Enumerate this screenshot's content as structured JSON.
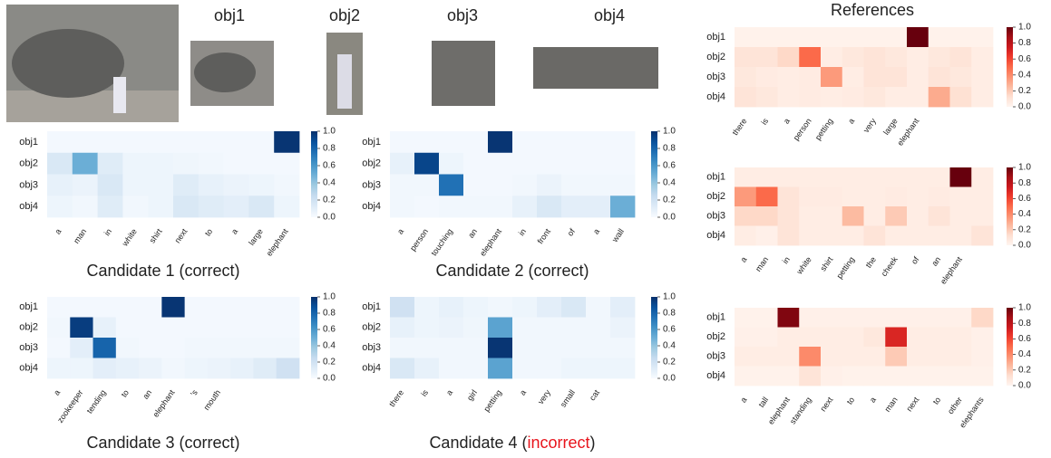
{
  "images": {
    "labels": [
      "obj1",
      "obj2",
      "obj3",
      "obj4"
    ]
  },
  "references_title": "References",
  "chart_data": [
    {
      "type": "heatmap",
      "colormap": "Blues",
      "vlim": [
        0,
        1
      ],
      "title_parts": [
        {
          "text": "Candidate 1 (correct)"
        }
      ],
      "categories": [
        "a",
        "man",
        "in",
        "white",
        "shirt",
        "next",
        "to",
        "a",
        "large",
        "elephant"
      ],
      "rows": [
        "obj1",
        "obj2",
        "obj3",
        "obj4"
      ],
      "values": [
        [
          0.02,
          0.02,
          0.02,
          0.02,
          0.02,
          0.02,
          0.02,
          0.02,
          0.02,
          0.98
        ],
        [
          0.15,
          0.5,
          0.12,
          0.05,
          0.05,
          0.04,
          0.03,
          0.02,
          0.02,
          0.02
        ],
        [
          0.08,
          0.06,
          0.15,
          0.05,
          0.05,
          0.12,
          0.08,
          0.06,
          0.05,
          0.03
        ],
        [
          0.05,
          0.03,
          0.12,
          0.03,
          0.05,
          0.15,
          0.12,
          0.1,
          0.15,
          0.05
        ]
      ],
      "cticks": [
        {
          "value": 0,
          "label": "0.0"
        },
        0.2,
        0.4,
        0.6,
        0.8,
        {
          "value": 1,
          "label": "1.0"
        }
      ]
    },
    {
      "type": "heatmap",
      "colormap": "Blues",
      "vlim": [
        0,
        1
      ],
      "title_parts": [
        {
          "text": "Candidate 2 (correct)"
        }
      ],
      "categories": [
        "a",
        "person",
        "touching",
        "an",
        "elephant",
        "in",
        "front",
        "of",
        "a",
        "wall"
      ],
      "rows": [
        "obj1",
        "obj2",
        "obj3",
        "obj4"
      ],
      "values": [
        [
          0.02,
          0.02,
          0.02,
          0.02,
          0.98,
          0.02,
          0.02,
          0.02,
          0.02,
          0.02
        ],
        [
          0.08,
          0.92,
          0.05,
          0.02,
          0.02,
          0.02,
          0.02,
          0.02,
          0.02,
          0.02
        ],
        [
          0.03,
          0.03,
          0.75,
          0.02,
          0.02,
          0.03,
          0.06,
          0.03,
          0.03,
          0.03
        ],
        [
          0.03,
          0.02,
          0.03,
          0.03,
          0.03,
          0.08,
          0.15,
          0.1,
          0.1,
          0.5
        ]
      ],
      "cticks": [
        {
          "value": 0,
          "label": "0.0"
        },
        0.2,
        0.4,
        0.6,
        0.8,
        {
          "value": 1,
          "label": "1.0"
        }
      ]
    },
    {
      "type": "heatmap",
      "colormap": "Blues",
      "vlim": [
        0,
        1
      ],
      "title_parts": [
        {
          "text": "Candidate 3 (correct)"
        }
      ],
      "categories": [
        "a",
        "zookeeper",
        "tending",
        "to",
        "an",
        "elephant",
        "'s",
        "mouth",
        null,
        null,
        null
      ],
      "rows": [
        "obj1",
        "obj2",
        "obj3",
        "obj4"
      ],
      "values": [
        [
          0.02,
          0.02,
          0.02,
          0.02,
          0.02,
          0.98,
          0.02,
          0.02,
          0.02,
          0.02,
          0.02
        ],
        [
          0.03,
          0.95,
          0.08,
          0.02,
          0.02,
          0.02,
          0.02,
          0.02,
          0.02,
          0.02,
          0.02
        ],
        [
          0.02,
          0.1,
          0.8,
          0.03,
          0.02,
          0.02,
          0.03,
          0.03,
          0.03,
          0.03,
          0.03
        ],
        [
          0.05,
          0.05,
          0.1,
          0.08,
          0.06,
          0.03,
          0.05,
          0.06,
          0.08,
          0.12,
          0.2
        ]
      ],
      "cticks": [
        {
          "value": 0,
          "label": "0.0"
        },
        0.2,
        0.4,
        0.6,
        0.8,
        {
          "value": 1,
          "label": "1.0"
        }
      ]
    },
    {
      "type": "heatmap",
      "colormap": "Blues",
      "vlim": [
        0,
        1
      ],
      "title_parts": [
        {
          "text": "Candidate 4 ("
        },
        {
          "text": "incorrect",
          "color": "#e8141c"
        },
        {
          "text": ")"
        }
      ],
      "categories": [
        "there",
        "is",
        "a",
        "girl",
        "petting",
        "a",
        "very",
        "small",
        "cat",
        null
      ],
      "rows": [
        "obj1",
        "obj2",
        "obj3",
        "obj4"
      ],
      "values": [
        [
          0.2,
          0.05,
          0.08,
          0.05,
          0.03,
          0.05,
          0.1,
          0.15,
          0.03,
          0.1
        ],
        [
          0.08,
          0.05,
          0.06,
          0.04,
          0.55,
          0.03,
          0.03,
          0.03,
          0.03,
          0.06
        ],
        [
          0.03,
          0.03,
          0.03,
          0.03,
          0.98,
          0.03,
          0.03,
          0.03,
          0.03,
          0.03
        ],
        [
          0.15,
          0.08,
          0.03,
          0.03,
          0.55,
          0.03,
          0.03,
          0.05,
          0.05,
          0.05
        ]
      ],
      "cticks": [
        {
          "value": 0,
          "label": "0.0"
        },
        0.2,
        0.4,
        0.6,
        0.8,
        {
          "value": 1,
          "label": "1.0"
        }
      ]
    },
    {
      "type": "heatmap",
      "colormap": "Reds",
      "vlim": [
        0,
        1
      ],
      "categories": [
        "there",
        "is",
        "a",
        "person",
        "petting",
        "a",
        "very",
        "large",
        "elephant",
        null,
        null,
        null
      ],
      "rows": [
        "obj1",
        "obj2",
        "obj3",
        "obj4"
      ],
      "values": [
        [
          0.02,
          0.02,
          0.02,
          0.02,
          0.02,
          0.02,
          0.02,
          0.02,
          1.0,
          0.02,
          0.02,
          0.02
        ],
        [
          0.1,
          0.1,
          0.15,
          0.5,
          0.05,
          0.08,
          0.1,
          0.08,
          0.05,
          0.08,
          0.1,
          0.05
        ],
        [
          0.08,
          0.06,
          0.05,
          0.06,
          0.35,
          0.05,
          0.1,
          0.1,
          0.05,
          0.1,
          0.08,
          0.05
        ],
        [
          0.1,
          0.08,
          0.05,
          0.06,
          0.05,
          0.06,
          0.08,
          0.05,
          0.05,
          0.3,
          0.12,
          0.05
        ]
      ],
      "cticks": [
        {
          "value": 0,
          "label": "0.0"
        },
        0.2,
        0.4,
        0.6,
        0.8,
        {
          "value": 1,
          "label": "1.0"
        }
      ]
    },
    {
      "type": "heatmap",
      "colormap": "Reds",
      "vlim": [
        0,
        1
      ],
      "categories": [
        "a",
        "man",
        "in",
        "white",
        "shirt",
        "petting",
        "the",
        "cheek",
        "of",
        "an",
        "elephant",
        null
      ],
      "rows": [
        "obj1",
        "obj2",
        "obj3",
        "obj4"
      ],
      "values": [
        [
          0.05,
          0.05,
          0.05,
          0.05,
          0.05,
          0.05,
          0.05,
          0.05,
          0.05,
          0.05,
          1.0,
          0.05
        ],
        [
          0.35,
          0.5,
          0.1,
          0.06,
          0.06,
          0.05,
          0.05,
          0.06,
          0.05,
          0.06,
          0.05,
          0.05
        ],
        [
          0.15,
          0.15,
          0.1,
          0.05,
          0.05,
          0.25,
          0.05,
          0.2,
          0.05,
          0.1,
          0.05,
          0.05
        ],
        [
          0.05,
          0.03,
          0.1,
          0.05,
          0.05,
          0.05,
          0.1,
          0.05,
          0.05,
          0.05,
          0.05,
          0.1
        ]
      ],
      "cticks": [
        {
          "value": 0,
          "label": "0.0"
        },
        0.2,
        0.4,
        0.6,
        0.8,
        {
          "value": 1,
          "label": "1.0"
        }
      ]
    },
    {
      "type": "heatmap",
      "colormap": "Reds",
      "vlim": [
        0,
        1
      ],
      "categories": [
        "a",
        "tall",
        "elephant",
        "standing",
        "next",
        "to",
        "a",
        "man",
        "next",
        "to",
        "other",
        "elephants"
      ],
      "rows": [
        "obj1",
        "obj2",
        "obj3",
        "obj4"
      ],
      "values": [
        [
          0.02,
          0.02,
          0.95,
          0.03,
          0.03,
          0.03,
          0.03,
          0.03,
          0.03,
          0.03,
          0.03,
          0.15
        ],
        [
          0.03,
          0.03,
          0.05,
          0.05,
          0.05,
          0.05,
          0.08,
          0.7,
          0.05,
          0.05,
          0.05,
          0.03
        ],
        [
          0.05,
          0.05,
          0.05,
          0.4,
          0.05,
          0.05,
          0.05,
          0.2,
          0.05,
          0.05,
          0.05,
          0.03
        ],
        [
          0.02,
          0.02,
          0.02,
          0.1,
          0.03,
          0.02,
          0.02,
          0.02,
          0.02,
          0.02,
          0.02,
          0.02
        ]
      ],
      "cticks": [
        {
          "value": 0,
          "label": "0.0"
        },
        0.2,
        0.4,
        0.6,
        0.8,
        {
          "value": 1,
          "label": "1.0"
        }
      ]
    }
  ]
}
